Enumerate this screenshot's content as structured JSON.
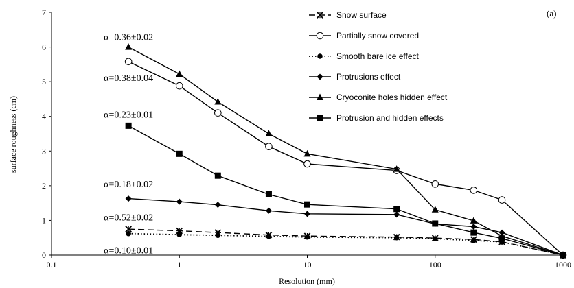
{
  "chart_data": {
    "type": "line",
    "panel_label": "(a)",
    "xlabel": "Resolution (mm)",
    "ylabel": "surface roughness (cm)",
    "xscale": "log",
    "xlim": [
      0.1,
      1000
    ],
    "ylim": [
      0,
      7
    ],
    "x_ticks": [
      0.1,
      1,
      10,
      100,
      1000
    ],
    "x_tick_labels": [
      "0.1",
      "1",
      "10",
      "100",
      "1000"
    ],
    "y_ticks": [
      0,
      1,
      2,
      3,
      4,
      5,
      6,
      7
    ],
    "y_tick_labels": [
      "0",
      "1",
      "2",
      "3",
      "4",
      "5",
      "6",
      "7"
    ],
    "grid": false,
    "legend_position": "top-right",
    "series": [
      {
        "name": "Snow surface",
        "marker": "x",
        "line": "dashed",
        "color": "#000000",
        "x": [
          0.4,
          1,
          2,
          5,
          10,
          50,
          100,
          200,
          333,
          1000
        ],
        "y": [
          0.75,
          0.7,
          0.65,
          0.58,
          0.55,
          0.52,
          0.49,
          0.45,
          0.38,
          0.0
        ]
      },
      {
        "name": "Partially snow covered",
        "marker": "open-circle",
        "line": "solid",
        "color": "#000000",
        "x": [
          0.4,
          1,
          2,
          5,
          10,
          50,
          100,
          200,
          333,
          1000
        ],
        "y": [
          5.58,
          4.88,
          4.1,
          3.13,
          2.63,
          2.44,
          2.05,
          1.87,
          1.59,
          0.0
        ]
      },
      {
        "name": "Smooth bare ice effect",
        "marker": "filled-circle",
        "line": "dotted",
        "color": "#000000",
        "x": [
          0.4,
          1,
          2,
          5,
          10,
          50,
          100,
          200,
          333,
          1000
        ],
        "y": [
          0.62,
          0.59,
          0.57,
          0.54,
          0.52,
          0.5,
          0.47,
          0.42,
          0.38,
          0.0
        ]
      },
      {
        "name": "Protrusions effect",
        "marker": "diamond",
        "line": "solid",
        "color": "#000000",
        "x": [
          0.4,
          1,
          2,
          5,
          10,
          50,
          100,
          200,
          333,
          1000
        ],
        "y": [
          1.63,
          1.54,
          1.45,
          1.28,
          1.19,
          1.17,
          0.9,
          0.82,
          0.65,
          0.0
        ]
      },
      {
        "name": "Cryoconite holes hidden effect",
        "marker": "triangle",
        "line": "solid",
        "color": "#000000",
        "x": [
          0.4,
          1,
          2,
          5,
          10,
          50,
          100,
          200,
          333,
          1000
        ],
        "y": [
          6.0,
          5.22,
          4.42,
          3.5,
          2.92,
          2.48,
          1.31,
          0.99,
          0.55,
          0.0
        ]
      },
      {
        "name": "Protrusion and hidden effects",
        "marker": "square",
        "line": "solid",
        "color": "#000000",
        "x": [
          0.4,
          1,
          2,
          5,
          10,
          50,
          100,
          200,
          333,
          1000
        ],
        "y": [
          3.73,
          2.92,
          2.29,
          1.75,
          1.46,
          1.33,
          0.91,
          0.65,
          0.48,
          0.0
        ]
      }
    ],
    "annotations": [
      {
        "text": "α=0.36±0.02",
        "x": 0.4,
        "y": 6.2
      },
      {
        "text": "α=0.38±0.04",
        "x": 0.4,
        "y": 5.02
      },
      {
        "text": "α=0.23±0.01",
        "x": 0.4,
        "y": 3.96
      },
      {
        "text": "α=0.18±0.02",
        "x": 0.4,
        "y": 1.96
      },
      {
        "text": "α=0.52±0.02",
        "x": 0.4,
        "y": 1.0
      },
      {
        "text": "α=0.10±0.01",
        "x": 0.4,
        "y": 0.05
      }
    ]
  }
}
